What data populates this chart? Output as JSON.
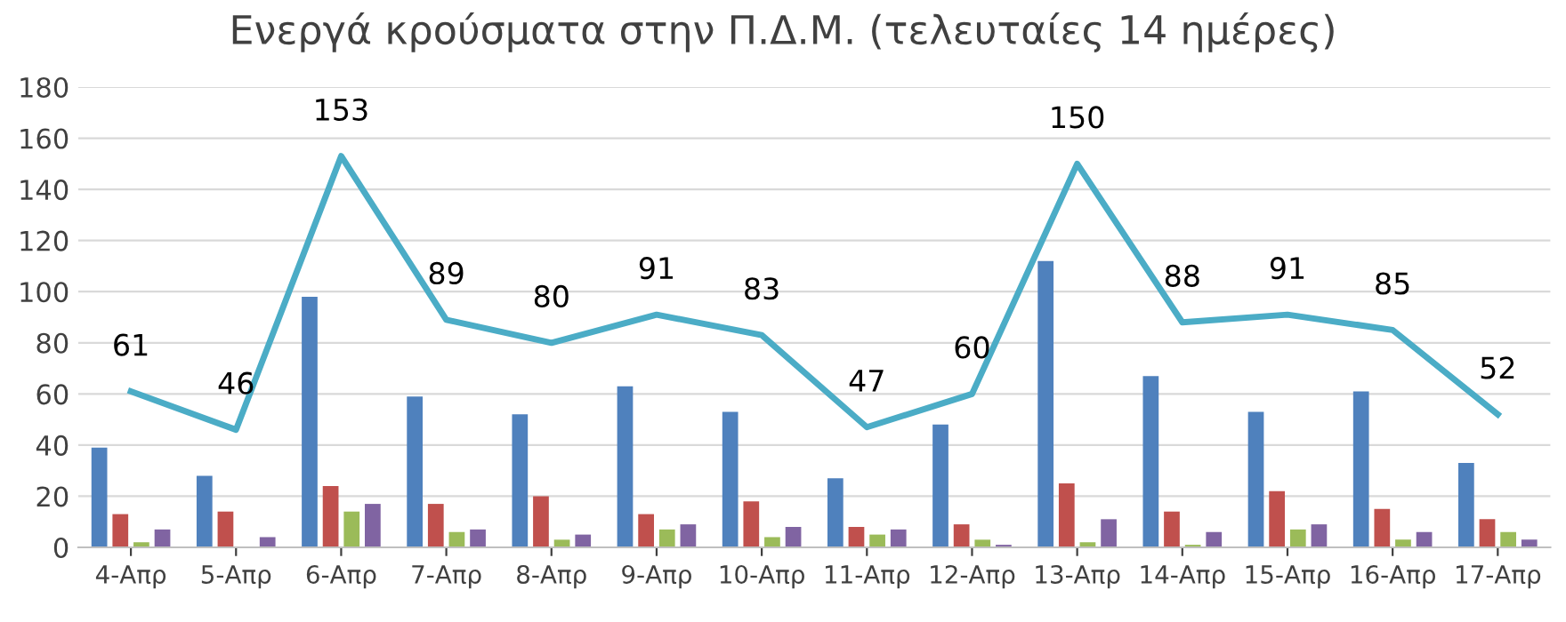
{
  "chart_data": {
    "type": "bar",
    "title": "Ενεργά κρούσματα στην Π.Δ.Μ. (τελευταίες 14 ημέρες)",
    "categories": [
      "4-Απρ",
      "5-Απρ",
      "6-Απρ",
      "7-Απρ",
      "8-Απρ",
      "9-Απρ",
      "10-Απρ",
      "11-Απρ",
      "12-Απρ",
      "13-Απρ",
      "14-Απρ",
      "15-Απρ",
      "16-Απρ",
      "17-Απρ"
    ],
    "series": [
      {
        "color": "#4f81bd",
        "values": [
          39,
          28,
          98,
          59,
          52,
          63,
          53,
          27,
          48,
          112,
          67,
          53,
          61,
          33
        ]
      },
      {
        "color": "#c0504d",
        "values": [
          13,
          14,
          24,
          17,
          20,
          13,
          18,
          8,
          9,
          25,
          14,
          22,
          15,
          11
        ]
      },
      {
        "color": "#9bbb59",
        "values": [
          2,
          0,
          14,
          6,
          3,
          7,
          4,
          5,
          3,
          2,
          1,
          7,
          3,
          6
        ]
      },
      {
        "color": "#8064a2",
        "values": [
          7,
          4,
          17,
          7,
          5,
          9,
          8,
          7,
          1,
          11,
          6,
          9,
          6,
          3
        ]
      },
      {
        "type": "line",
        "color": "#4bacc6",
        "values": [
          61,
          46,
          153,
          89,
          80,
          91,
          83,
          47,
          60,
          150,
          88,
          91,
          85,
          52
        ],
        "value_labels": [
          "61",
          "46",
          "153",
          "89",
          "80",
          "91",
          "83",
          "47",
          "60",
          "150",
          "88",
          "91",
          "85",
          "52"
        ]
      }
    ],
    "ylim": [
      0,
      180
    ],
    "yticks": [
      0,
      20,
      40,
      60,
      80,
      100,
      120,
      140,
      160,
      180
    ],
    "grid": "y",
    "legend": false
  }
}
